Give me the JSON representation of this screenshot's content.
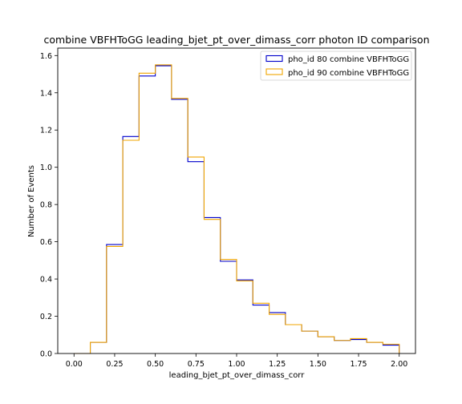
{
  "chart_data": {
    "type": "step-histogram",
    "title": "combine VBFHToGG leading_bjet_pt_over_dimass_corr photon ID comparison",
    "xlabel": "leading_bjet_pt_over_dimass_corr",
    "ylabel": "Number of Events",
    "xlim": [
      -0.1,
      2.1
    ],
    "ylim": [
      0,
      1.64
    ],
    "x_ticks": [
      "0.00",
      "0.25",
      "0.50",
      "0.75",
      "1.00",
      "1.25",
      "1.50",
      "1.75",
      "2.00"
    ],
    "y_ticks": [
      "0.0",
      "0.2",
      "0.4",
      "0.6",
      "0.8",
      "1.0",
      "1.2",
      "1.4",
      "1.6"
    ],
    "legend_position": "upper-right",
    "bin_edges": [
      0.0,
      0.1,
      0.2,
      0.3,
      0.4,
      0.5,
      0.6,
      0.7,
      0.8,
      0.9,
      1.0,
      1.1,
      1.2,
      1.3,
      1.4,
      1.5,
      1.6,
      1.7,
      1.8,
      1.9,
      2.0
    ],
    "series": [
      {
        "name": "pho_id 80 combine VBFHToGG",
        "color": "#0000cc",
        "values": [
          0.0,
          0.06,
          0.585,
          1.165,
          1.49,
          1.545,
          1.365,
          1.03,
          0.73,
          0.495,
          0.395,
          0.26,
          0.22,
          0.155,
          0.12,
          0.09,
          0.07,
          0.075,
          0.06,
          0.045
        ]
      },
      {
        "name": "pho_id 90 combine VBFHToGG",
        "color": "#f0a500",
        "values": [
          0.0,
          0.06,
          0.575,
          1.145,
          1.505,
          1.55,
          1.37,
          1.055,
          0.72,
          0.505,
          0.39,
          0.27,
          0.21,
          0.155,
          0.12,
          0.09,
          0.07,
          0.08,
          0.06,
          0.05
        ]
      }
    ]
  }
}
